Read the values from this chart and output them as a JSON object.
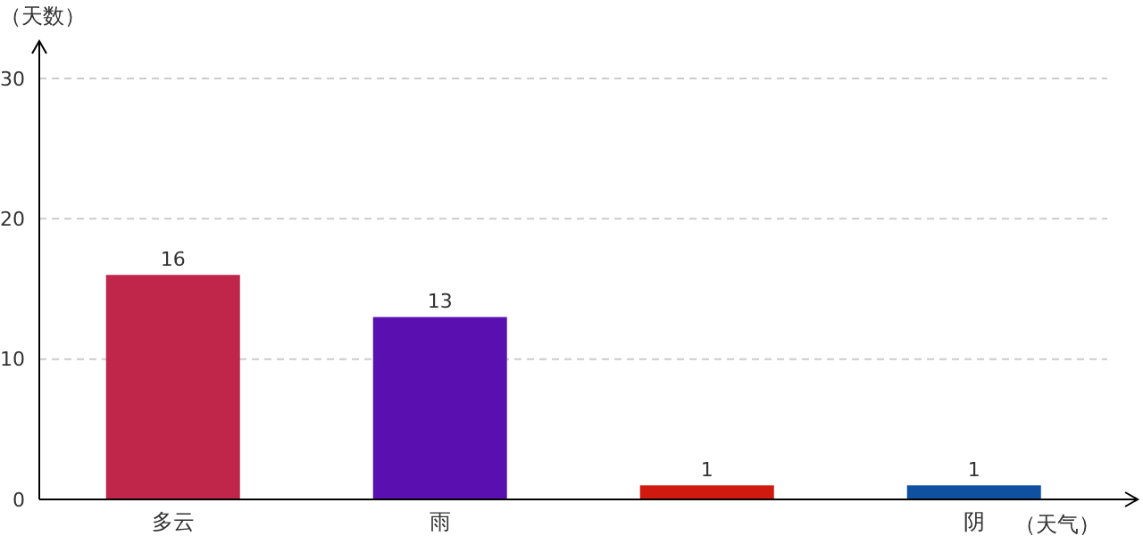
{
  "chart_data": {
    "type": "bar",
    "xlabel": "（天气）",
    "ylabel": "（天数）",
    "categories": [
      "多云",
      "雨",
      null,
      "阴"
    ],
    "values": [
      16,
      13,
      1,
      1
    ],
    "colors": [
      "#c0264a",
      "#5a10b0",
      "#d01a10",
      "#1050a0"
    ],
    "ylim": [
      0,
      30
    ],
    "yticks": [
      0,
      10,
      20,
      30
    ],
    "grid": "y",
    "data_labels": true
  }
}
